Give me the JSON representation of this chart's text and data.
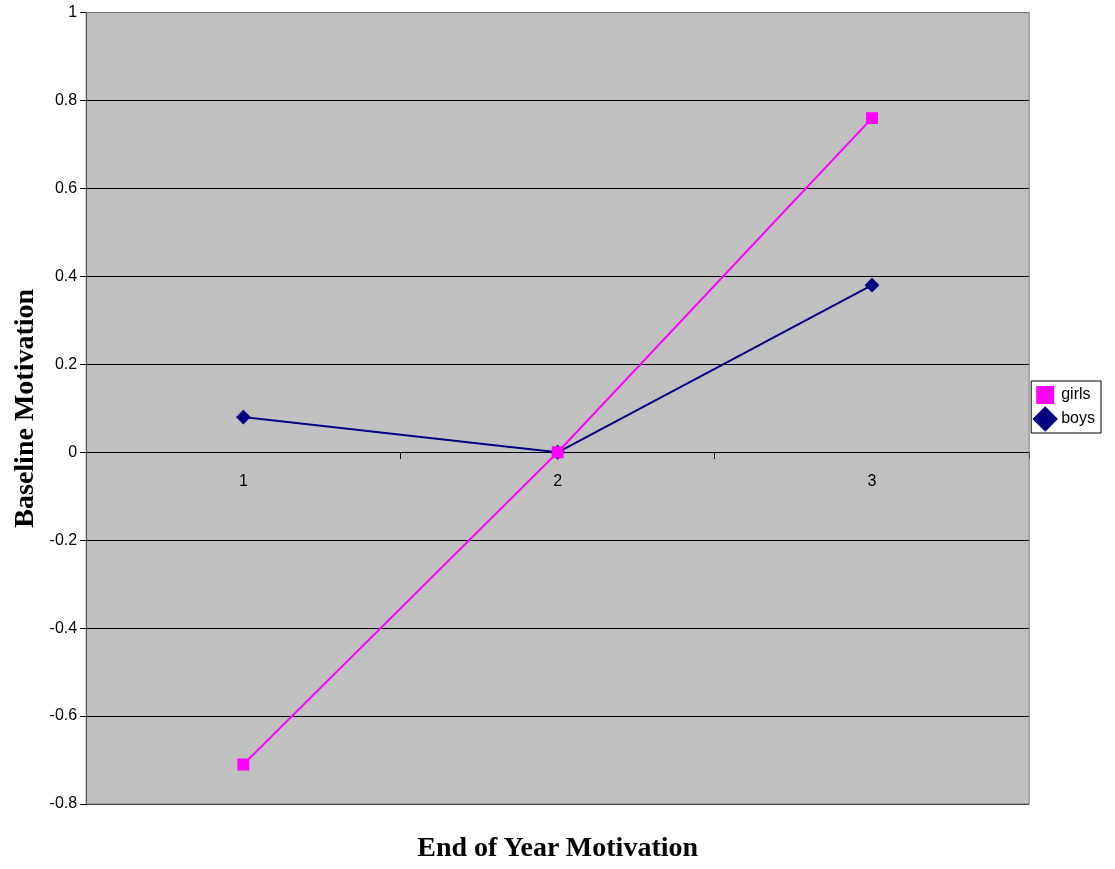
{
  "chart_data": {
    "type": "line",
    "xlabel": "End of Year Motivation",
    "ylabel": "Baseline Motivation",
    "categories": [
      "1",
      "2",
      "3"
    ],
    "series": [
      {
        "name": "girls",
        "color": "#ff00ff",
        "marker": "square",
        "values": [
          -0.71,
          0,
          0.76
        ]
      },
      {
        "name": "boys",
        "color": "#000080",
        "marker": "diamond",
        "values": [
          0.08,
          0,
          0.38
        ]
      }
    ],
    "ylim": [
      -0.8,
      1
    ],
    "yticks": [
      -0.8,
      -0.6,
      -0.4,
      -0.2,
      0,
      0.2,
      0.4,
      0.6,
      0.8,
      1
    ],
    "grid": "y",
    "legend": "right",
    "line_style": "solid"
  }
}
